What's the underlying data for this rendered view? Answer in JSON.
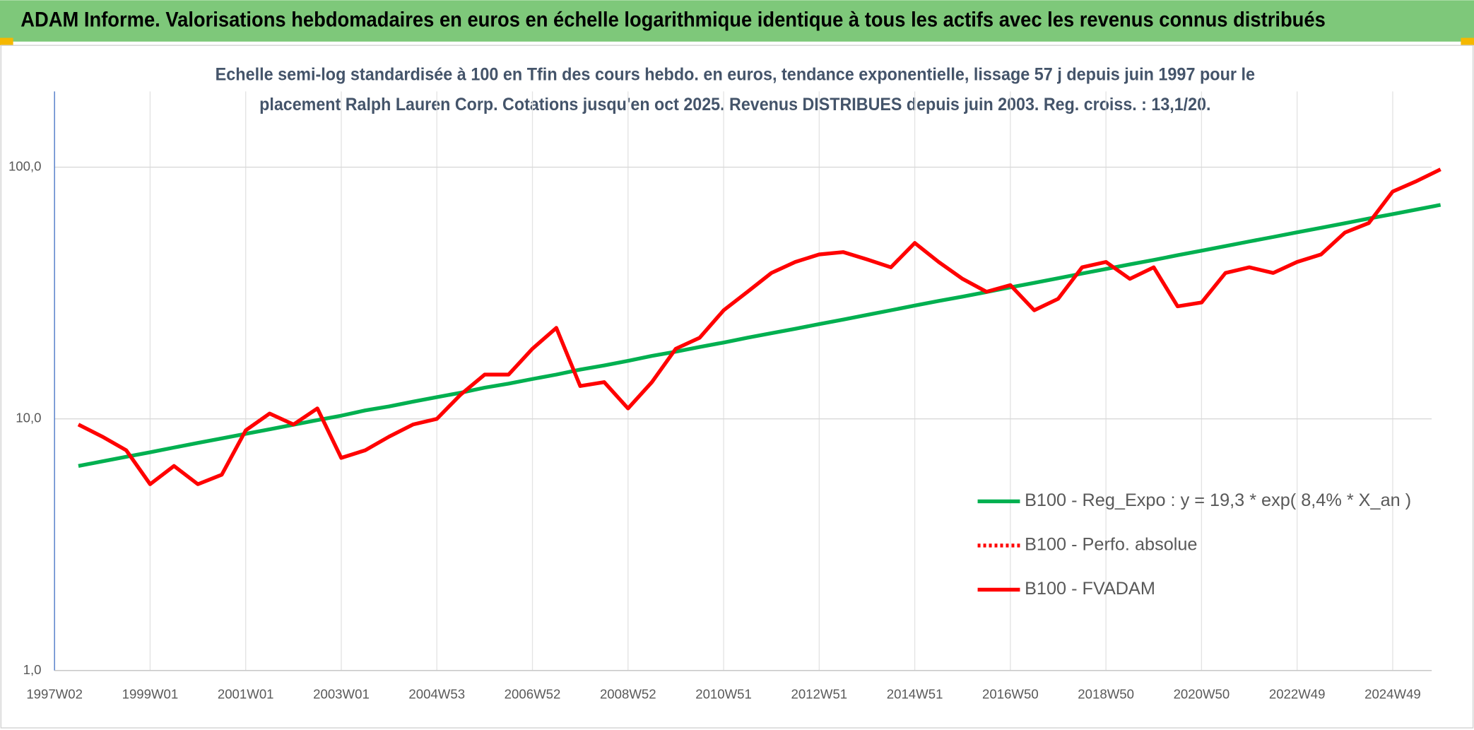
{
  "chart_data": {
    "type": "line",
    "title": "ADAM Informe. Valorisations hebdomadaires en euros en échelle logarithmique identique à tous les actifs avec les revenus connus distribués",
    "subtitle": [
      "Echelle semi-log standardisée à 100 en Tfin des cours hebdo. en euros, tendance exponentielle, lissage 57 j depuis juin 1997 pour le",
      "placement Ralph Lauren Corp. Cotations jusqu'en oct 2025. Revenus DISTRIBUES depuis juin 2003. Reg. croiss. : 13,1/20."
    ],
    "categories": [
      "1997W02",
      null,
      null,
      null,
      "1999W01",
      null,
      null,
      null,
      "2001W01",
      null,
      null,
      null,
      "2003W01",
      null,
      null,
      null,
      "2004W53",
      null,
      null,
      null,
      "2006W52",
      null,
      null,
      null,
      "2008W52",
      null,
      null,
      null,
      "2010W51",
      null,
      null,
      null,
      "2012W51",
      null,
      null,
      null,
      "2014W51",
      null,
      null,
      null,
      "2016W50",
      null,
      null,
      null,
      "2018W50",
      null,
      null,
      null,
      "2020W50",
      null,
      null,
      null,
      "2022W49",
      null,
      null,
      null,
      "2024W49",
      null,
      null
    ],
    "series": [
      {
        "name": "B100 - Reg_Expo : y = 19,3 * exp( 8,4% *  X_an )",
        "color": "#00b050",
        "style": "solid",
        "values": [
          null,
          6.5,
          6.78,
          7.07,
          7.37,
          7.69,
          8.02,
          8.36,
          8.72,
          9.09,
          9.48,
          9.89,
          10.3,
          10.8,
          11.2,
          11.7,
          12.2,
          12.7,
          13.3,
          13.8,
          14.4,
          15.0,
          15.7,
          16.3,
          17.0,
          17.8,
          18.5,
          19.3,
          20.1,
          21.0,
          21.9,
          22.8,
          23.8,
          24.8,
          25.9,
          27.0,
          28.2,
          29.4,
          30.6,
          31.9,
          33.3,
          34.7,
          36.2,
          37.8,
          39.4,
          41.1,
          42.8,
          44.7,
          46.6,
          48.6,
          50.7,
          52.8,
          55.1,
          57.4,
          59.9,
          62.5,
          65.1,
          67.9,
          70.8
        ]
      },
      {
        "name": "B100 - Perfo. absolue",
        "color": "#ff0000",
        "style": "dotted",
        "values": [
          null,
          null,
          null,
          null,
          null,
          null,
          null,
          null,
          null,
          null,
          null,
          null,
          null,
          null,
          null,
          null,
          null,
          null,
          null,
          null,
          null,
          null,
          null,
          null,
          null,
          null,
          null,
          null,
          null,
          null,
          null,
          null,
          null,
          null,
          null,
          null,
          null,
          null,
          null,
          null,
          null,
          null,
          null,
          null,
          null,
          null,
          null,
          null,
          null,
          null,
          null,
          null,
          null,
          null,
          null,
          null,
          null,
          null,
          null
        ]
      },
      {
        "name": "B100 - FVADAM",
        "color": "#ff0000",
        "style": "solid",
        "values": [
          null,
          9.5,
          8.5,
          7.5,
          5.5,
          6.5,
          5.5,
          6.0,
          9.0,
          10.5,
          9.5,
          11.0,
          7.0,
          7.5,
          8.5,
          9.5,
          10.0,
          12.5,
          15,
          15,
          19,
          23,
          13.5,
          14,
          11,
          14,
          19,
          21,
          27,
          32,
          38,
          42,
          45,
          46,
          43,
          40,
          50,
          42,
          36,
          32,
          34,
          27,
          30,
          40,
          42,
          36,
          40,
          28,
          29,
          38,
          40,
          38,
          42,
          45,
          55,
          60,
          80,
          88,
          98
        ]
      }
    ],
    "log_scale": true,
    "ylim": [
      1,
      200
    ],
    "yticks": [
      {
        "value": 1,
        "label": "1,0"
      },
      {
        "value": 10,
        "label": "10,0"
      },
      {
        "value": 100,
        "label": "100,0"
      }
    ],
    "grid": true,
    "legend": "lower-right"
  }
}
